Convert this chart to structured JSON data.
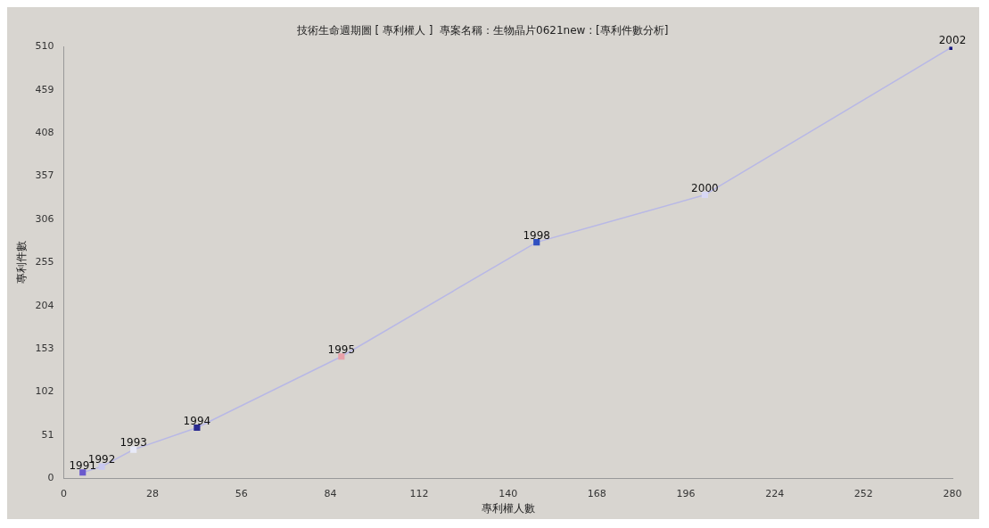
{
  "chart_data": {
    "type": "line",
    "title": "技術生命週期圖 [ 專利權人 ]  專案名稱：生物晶片0621new : [專利件數分析]",
    "xlabel": "專利權人數",
    "ylabel": "專利件數",
    "x": [
      6,
      12,
      22,
      42,
      87.5,
      149,
      202,
      280
    ],
    "series": [
      {
        "color": "#b8b8e6",
        "colors": [
          "#6a5acd",
          "#c8c8f0",
          "#e8eaf8",
          "#2a2a90",
          "#e8a0a8",
          "#3050c0",
          "#d8d8f4",
          "#1a1a80"
        ],
        "values": [
          7,
          14,
          34,
          60,
          144,
          279,
          335,
          510
        ]
      }
    ],
    "xlim": [
      0,
      280
    ],
    "xticks": [
      0,
      28,
      56,
      84,
      112,
      140,
      168,
      196,
      224,
      252,
      280
    ],
    "ylim": [
      0,
      510
    ],
    "yticks": [
      0,
      51,
      102,
      153,
      204,
      255,
      306,
      357,
      408,
      459,
      510
    ],
    "marker": "square",
    "grid": false,
    "legend": false,
    "annotations": [
      {
        "text": "1991",
        "x": 6,
        "y": 7
      },
      {
        "text": "1992",
        "x": 12,
        "y": 14
      },
      {
        "text": "1993",
        "x": 22,
        "y": 34
      },
      {
        "text": "1994",
        "x": 42,
        "y": 60
      },
      {
        "text": "1995",
        "x": 87.5,
        "y": 144
      },
      {
        "text": "1998",
        "x": 149,
        "y": 279
      },
      {
        "text": "2000",
        "x": 202,
        "y": 335
      },
      {
        "text": "2002",
        "x": 280,
        "y": 510
      }
    ]
  }
}
